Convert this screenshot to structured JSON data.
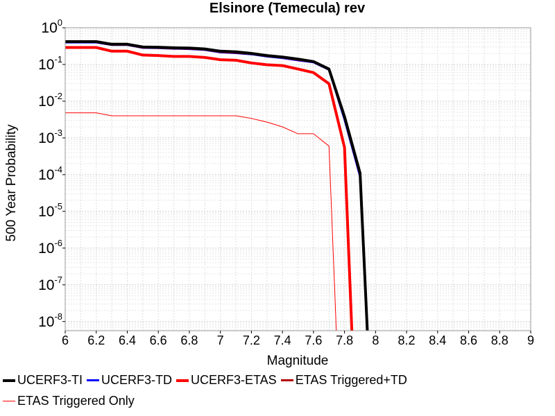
{
  "chart_data": {
    "type": "line",
    "title": "Elsinore (Temecula) rev",
    "xlabel": "Magnitude",
    "ylabel": "500 Year Probability",
    "xlim": [
      6,
      9
    ],
    "ylim_log10": [
      -8.25,
      0
    ],
    "yscale": "log",
    "grid": true,
    "legend_position": "bottom",
    "x_ticks": [
      "6",
      "6.2",
      "6.4",
      "6.6",
      "6.8",
      "7",
      "7.2",
      "7.4",
      "7.6",
      "7.8",
      "8",
      "8.2",
      "8.4",
      "8.6",
      "8.8",
      "9"
    ],
    "y_ticks": [
      {
        "base": "10",
        "exp": "0"
      },
      {
        "base": "10",
        "exp": "-1"
      },
      {
        "base": "10",
        "exp": "-2"
      },
      {
        "base": "10",
        "exp": "-3"
      },
      {
        "base": "10",
        "exp": "-4"
      },
      {
        "base": "10",
        "exp": "-5"
      },
      {
        "base": "10",
        "exp": "-6"
      },
      {
        "base": "10",
        "exp": "-7"
      },
      {
        "base": "10",
        "exp": "-8"
      }
    ],
    "series": [
      {
        "name": "UCERF3-TI",
        "color": "#000000",
        "width": 4,
        "x": [
          6.0,
          6.2,
          6.3,
          6.4,
          6.5,
          6.6,
          6.7,
          6.8,
          6.9,
          7.0,
          7.1,
          7.2,
          7.3,
          7.4,
          7.5,
          7.6,
          7.7,
          7.8,
          7.9,
          7.95
        ],
        "y": [
          0.42,
          0.42,
          0.355,
          0.355,
          0.3,
          0.295,
          0.285,
          0.28,
          0.265,
          0.23,
          0.22,
          0.2,
          0.175,
          0.16,
          0.14,
          0.12,
          0.075,
          0.0038,
          0.00011,
          1e-09
        ]
      },
      {
        "name": "UCERF3-TD",
        "color": "#0000ff",
        "width": 3,
        "x": [
          6.0,
          6.2,
          6.3,
          6.4,
          6.5,
          6.6,
          6.7,
          6.8,
          6.9,
          7.0,
          7.1,
          7.2,
          7.3,
          7.4,
          7.5,
          7.6,
          7.7,
          7.8,
          7.9,
          7.95
        ],
        "y": [
          0.4,
          0.4,
          0.34,
          0.34,
          0.285,
          0.28,
          0.27,
          0.265,
          0.25,
          0.215,
          0.205,
          0.19,
          0.165,
          0.15,
          0.13,
          0.115,
          0.072,
          0.0032,
          9e-05,
          1e-09
        ]
      },
      {
        "name": "UCERF3-ETAS",
        "color": "#ff0000",
        "width": 4,
        "x": [
          6.0,
          6.2,
          6.3,
          6.4,
          6.5,
          6.6,
          6.7,
          6.8,
          6.9,
          7.0,
          7.1,
          7.2,
          7.3,
          7.4,
          7.5,
          7.6,
          7.7,
          7.8,
          7.85
        ],
        "y": [
          0.29,
          0.29,
          0.23,
          0.23,
          0.18,
          0.175,
          0.165,
          0.165,
          0.155,
          0.135,
          0.13,
          0.11,
          0.098,
          0.093,
          0.075,
          0.06,
          0.03,
          0.00055,
          1e-09
        ]
      },
      {
        "name": "ETAS Triggered+TD",
        "color": "#b00000",
        "width": 3,
        "x": [
          6.0,
          6.2,
          6.3,
          6.4,
          6.5,
          6.6,
          6.7,
          6.8,
          6.9,
          7.0,
          7.1,
          7.2,
          7.3,
          7.4,
          7.5,
          7.6,
          7.7,
          7.8,
          7.9,
          7.95
        ],
        "y": [
          0.41,
          0.41,
          0.345,
          0.345,
          0.29,
          0.285,
          0.275,
          0.27,
          0.255,
          0.22,
          0.21,
          0.195,
          0.17,
          0.155,
          0.135,
          0.118,
          0.073,
          0.0035,
          0.0001,
          1e-09
        ]
      },
      {
        "name": "ETAS Triggered Only",
        "color": "#ff0000",
        "width": 1,
        "x": [
          6.0,
          6.2,
          6.3,
          6.4,
          6.5,
          6.6,
          6.7,
          6.8,
          6.9,
          7.0,
          7.1,
          7.2,
          7.3,
          7.4,
          7.5,
          7.6,
          7.7,
          7.75
        ],
        "y": [
          0.0048,
          0.0048,
          0.004,
          0.004,
          0.004,
          0.004,
          0.004,
          0.004,
          0.004,
          0.004,
          0.004,
          0.0034,
          0.0027,
          0.002,
          0.0013,
          0.0013,
          0.0006,
          1e-09
        ]
      }
    ]
  }
}
